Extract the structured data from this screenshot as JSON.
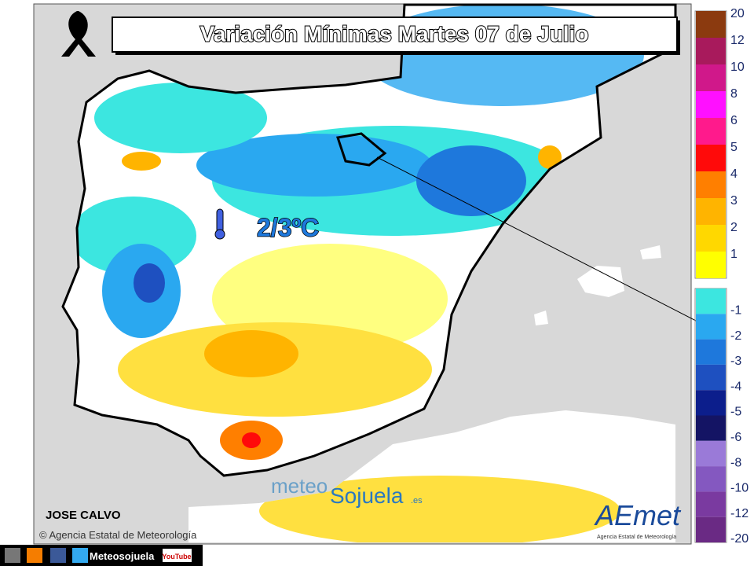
{
  "title": "Variación Mínimas Martes 07 de Julio",
  "annotation": "2/3ºC",
  "author": "JOSE CALVO",
  "copyright": "© Agencia Estatal de Meteorología",
  "watermark": {
    "part1": "meteo",
    "part2": "Sojuela",
    "part3": ".es"
  },
  "logo": {
    "name": "AEmet",
    "subtitle": "Agencia Estatal de Meteorología"
  },
  "footer": {
    "site": "Meteosojuela",
    "youtube": "YouTube"
  },
  "legend": {
    "positive": [
      {
        "label": "20",
        "color": "#8b3a0f"
      },
      {
        "label": "12",
        "color": "#a81a5c"
      },
      {
        "label": "10",
        "color": "#d0188a"
      },
      {
        "label": "8",
        "color": "#ff10ff"
      },
      {
        "label": "6",
        "color": "#ff1a8c"
      },
      {
        "label": "5",
        "color": "#ff0a0a"
      },
      {
        "label": "4",
        "color": "#ff7f00"
      },
      {
        "label": "3",
        "color": "#ffb400"
      },
      {
        "label": "2",
        "color": "#ffd800"
      },
      {
        "label": "1",
        "color": "#ffff00"
      }
    ],
    "negative": [
      {
        "label": "-1",
        "color": "#3ce6e0"
      },
      {
        "label": "-2",
        "color": "#2aa8f0"
      },
      {
        "label": "-3",
        "color": "#1e78dc"
      },
      {
        "label": "-4",
        "color": "#1e50c0"
      },
      {
        "label": "-5",
        "color": "#0c1e8c"
      },
      {
        "label": "-6",
        "color": "#141464"
      },
      {
        "label": "-8",
        "color": "#9a7ad8"
      },
      {
        "label": "-10",
        "color": "#8458c0"
      },
      {
        "label": "-12",
        "color": "#7a3aa0"
      },
      {
        "label": "-20",
        "color": "#6a2a84"
      }
    ]
  }
}
